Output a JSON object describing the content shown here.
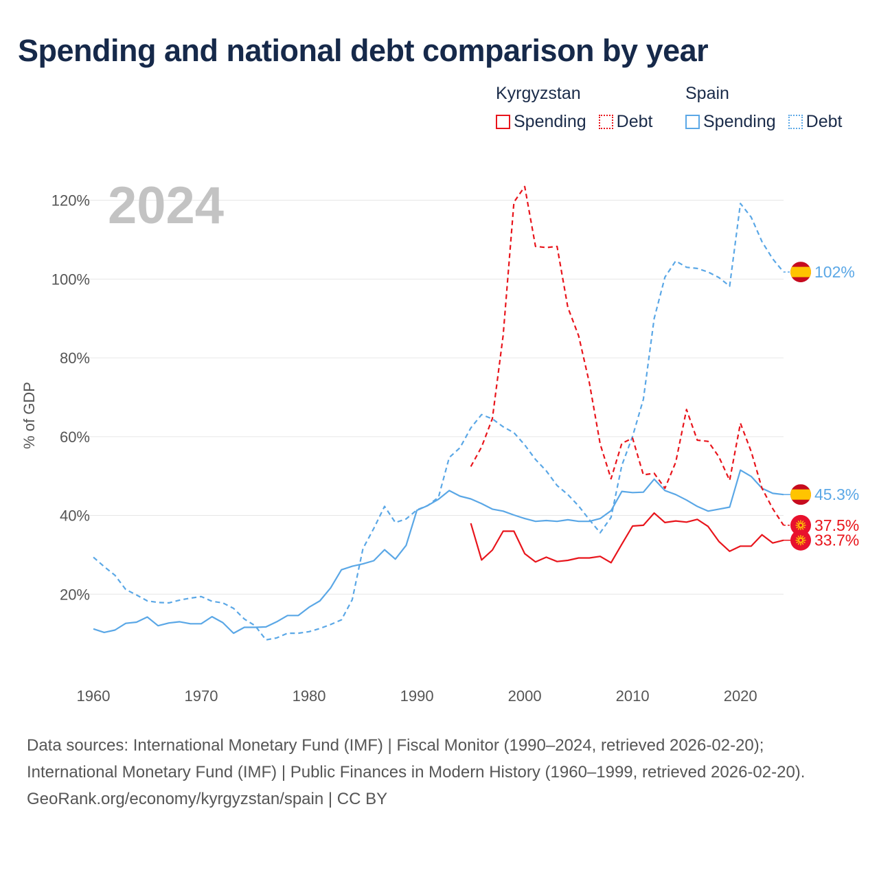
{
  "title": "Spending and national debt comparison by year",
  "legend": {
    "groups": [
      {
        "country": "Kyrgyzstan",
        "color": "#e8141b",
        "items": [
          {
            "label": "Spending",
            "style": "solid"
          },
          {
            "label": "Debt",
            "style": "dotted"
          }
        ]
      },
      {
        "country": "Spain",
        "color": "#5aa7e6",
        "items": [
          {
            "label": "Spending",
            "style": "solid"
          },
          {
            "label": "Debt",
            "style": "dotted"
          }
        ]
      }
    ]
  },
  "footer": {
    "sources": "Data sources: International Monetary Fund (IMF) | Fiscal Monitor (1990–2024, retrieved 2026-02-20); International Monetary Fund (IMF) | Public Finances in Modern History (1960–1999, retrieved 2026-02-20).",
    "credit": "GeoRank.org/economy/kyrgyzstan/spain | CC BY"
  },
  "chart_data": {
    "type": "line",
    "title": "Spending and national debt comparison by year",
    "year_label": "2024",
    "ylabel": "% of GDP",
    "xlabel": "",
    "xlim": [
      1960,
      2024
    ],
    "ylim": [
      0,
      125
    ],
    "y_ticks": [
      20,
      40,
      60,
      80,
      100,
      120
    ],
    "y_tick_labels": [
      "20%",
      "40%",
      "60%",
      "80%",
      "100%",
      "120%"
    ],
    "x_ticks": [
      1960,
      1970,
      1980,
      1990,
      2000,
      2010,
      2020
    ],
    "x_tick_labels": [
      "1960",
      "1970",
      "1980",
      "1990",
      "2000",
      "2010",
      "2020"
    ],
    "grid": true,
    "series": [
      {
        "name": "Spain Debt",
        "country": "Spain",
        "metric": "Debt",
        "color": "#5aa7e6",
        "dashed": true,
        "end_label": "102%",
        "flag": "spain",
        "x": [
          1960,
          1961,
          1962,
          1963,
          1964,
          1965,
          1966,
          1967,
          1968,
          1969,
          1970,
          1971,
          1972,
          1973,
          1974,
          1975,
          1976,
          1977,
          1978,
          1979,
          1980,
          1981,
          1982,
          1983,
          1984,
          1985,
          1986,
          1987,
          1988,
          1989,
          1990,
          1991,
          1992,
          1993,
          1994,
          1995,
          1996,
          1997,
          1998,
          1999,
          2000,
          2001,
          2002,
          2003,
          2004,
          2005,
          2006,
          2007,
          2008,
          2009,
          2010,
          2011,
          2012,
          2013,
          2014,
          2015,
          2016,
          2017,
          2018,
          2019,
          2020,
          2021,
          2022,
          2023,
          2024
        ],
        "values": [
          29.4,
          27,
          24.8,
          21.2,
          19.8,
          18.3,
          17.9,
          17.8,
          18.5,
          19,
          19.4,
          18.2,
          17.8,
          16.4,
          13.7,
          12,
          8.4,
          8.9,
          10.1,
          10.1,
          10.5,
          11.3,
          12.3,
          13.5,
          18.6,
          31.6,
          36.7,
          42.3,
          38.2,
          39.1,
          41.4,
          42.5,
          44.6,
          54.7,
          57.2,
          62.2,
          65.6,
          64.5,
          62.5,
          61,
          57.9,
          54.2,
          51.3,
          47.6,
          45.3,
          42.4,
          38.9,
          35.6,
          39.5,
          52.7,
          60.1,
          69.5,
          90,
          100.5,
          104.6,
          103,
          102.7,
          101.8,
          100.4,
          98.2,
          119.2,
          115.7,
          109.5,
          105.1,
          101.8
        ]
      },
      {
        "name": "Spain Spending",
        "country": "Spain",
        "metric": "Spending",
        "color": "#5aa7e6",
        "dashed": false,
        "end_label": "45.3%",
        "flag": "spain",
        "x": [
          1960,
          1961,
          1962,
          1963,
          1964,
          1965,
          1966,
          1967,
          1968,
          1969,
          1970,
          1971,
          1972,
          1973,
          1974,
          1975,
          1976,
          1977,
          1978,
          1979,
          1980,
          1981,
          1982,
          1983,
          1984,
          1985,
          1986,
          1987,
          1988,
          1989,
          1990,
          1991,
          1992,
          1993,
          1994,
          1995,
          1996,
          1997,
          1998,
          1999,
          2000,
          2001,
          2002,
          2003,
          2004,
          2005,
          2006,
          2007,
          2008,
          2009,
          2010,
          2011,
          2012,
          2013,
          2014,
          2015,
          2016,
          2017,
          2018,
          2019,
          2020,
          2021,
          2022,
          2023,
          2024
        ],
        "values": [
          11.2,
          10.3,
          10.9,
          12.6,
          12.9,
          14.2,
          12,
          12.7,
          13,
          12.5,
          12.5,
          14.3,
          12.8,
          10.1,
          11.6,
          11.6,
          11.7,
          13,
          14.6,
          14.6,
          16.7,
          18.3,
          21.6,
          26.2,
          27.1,
          27.7,
          28.5,
          31.3,
          28.9,
          32.4,
          41.3,
          42.5,
          44.1,
          46.3,
          44.9,
          44.2,
          43,
          41.6,
          41.1,
          40.1,
          39.2,
          38.5,
          38.7,
          38.5,
          38.9,
          38.5,
          38.5,
          39.2,
          41.2,
          46.1,
          45.8,
          45.9,
          49.2,
          46.3,
          45.3,
          43.9,
          42.3,
          41.1,
          41.6,
          42.1,
          51.5,
          49.9,
          46.9,
          45.6,
          45.3
        ]
      },
      {
        "name": "Kyrgyzstan Debt",
        "country": "Kyrgyzstan",
        "metric": "Debt",
        "color": "#e8141b",
        "dashed": true,
        "end_label": "37.5%",
        "flag": "kyrgyzstan",
        "x": [
          1995,
          1996,
          1997,
          1998,
          1999,
          2000,
          2001,
          2002,
          2003,
          2004,
          2005,
          2006,
          2007,
          2008,
          2009,
          2010,
          2011,
          2012,
          2013,
          2014,
          2015,
          2016,
          2017,
          2018,
          2019,
          2020,
          2021,
          2022,
          2023,
          2024
        ],
        "values": [
          52.4,
          57.4,
          64.6,
          85.7,
          119.5,
          123.5,
          108.3,
          108,
          108.3,
          92.8,
          85.6,
          73.6,
          58.1,
          49.3,
          58.3,
          59.6,
          50.3,
          50.7,
          46.9,
          53.5,
          66.9,
          59.1,
          58.8,
          54.9,
          48.9,
          63.4,
          56.2,
          46.9,
          41.7,
          37.5
        ]
      },
      {
        "name": "Kyrgyzstan Spending",
        "country": "Kyrgyzstan",
        "metric": "Spending",
        "color": "#e8141b",
        "dashed": false,
        "end_label": "33.7%",
        "flag": "kyrgyzstan",
        "x": [
          1995,
          1996,
          1997,
          1998,
          1999,
          2000,
          2001,
          2002,
          2003,
          2004,
          2005,
          2006,
          2007,
          2008,
          2009,
          2010,
          2011,
          2012,
          2013,
          2014,
          2015,
          2016,
          2017,
          2018,
          2019,
          2020,
          2021,
          2022,
          2023,
          2024
        ],
        "values": [
          38,
          28.7,
          31.2,
          36,
          36,
          30.3,
          28.2,
          29.4,
          28.3,
          28.6,
          29.2,
          29.2,
          29.6,
          28,
          32.7,
          37.3,
          37.5,
          40.6,
          38.2,
          38.6,
          38.3,
          39,
          37.2,
          33.4,
          30.9,
          32.2,
          32.2,
          35.1,
          33,
          33.7
        ]
      }
    ]
  }
}
